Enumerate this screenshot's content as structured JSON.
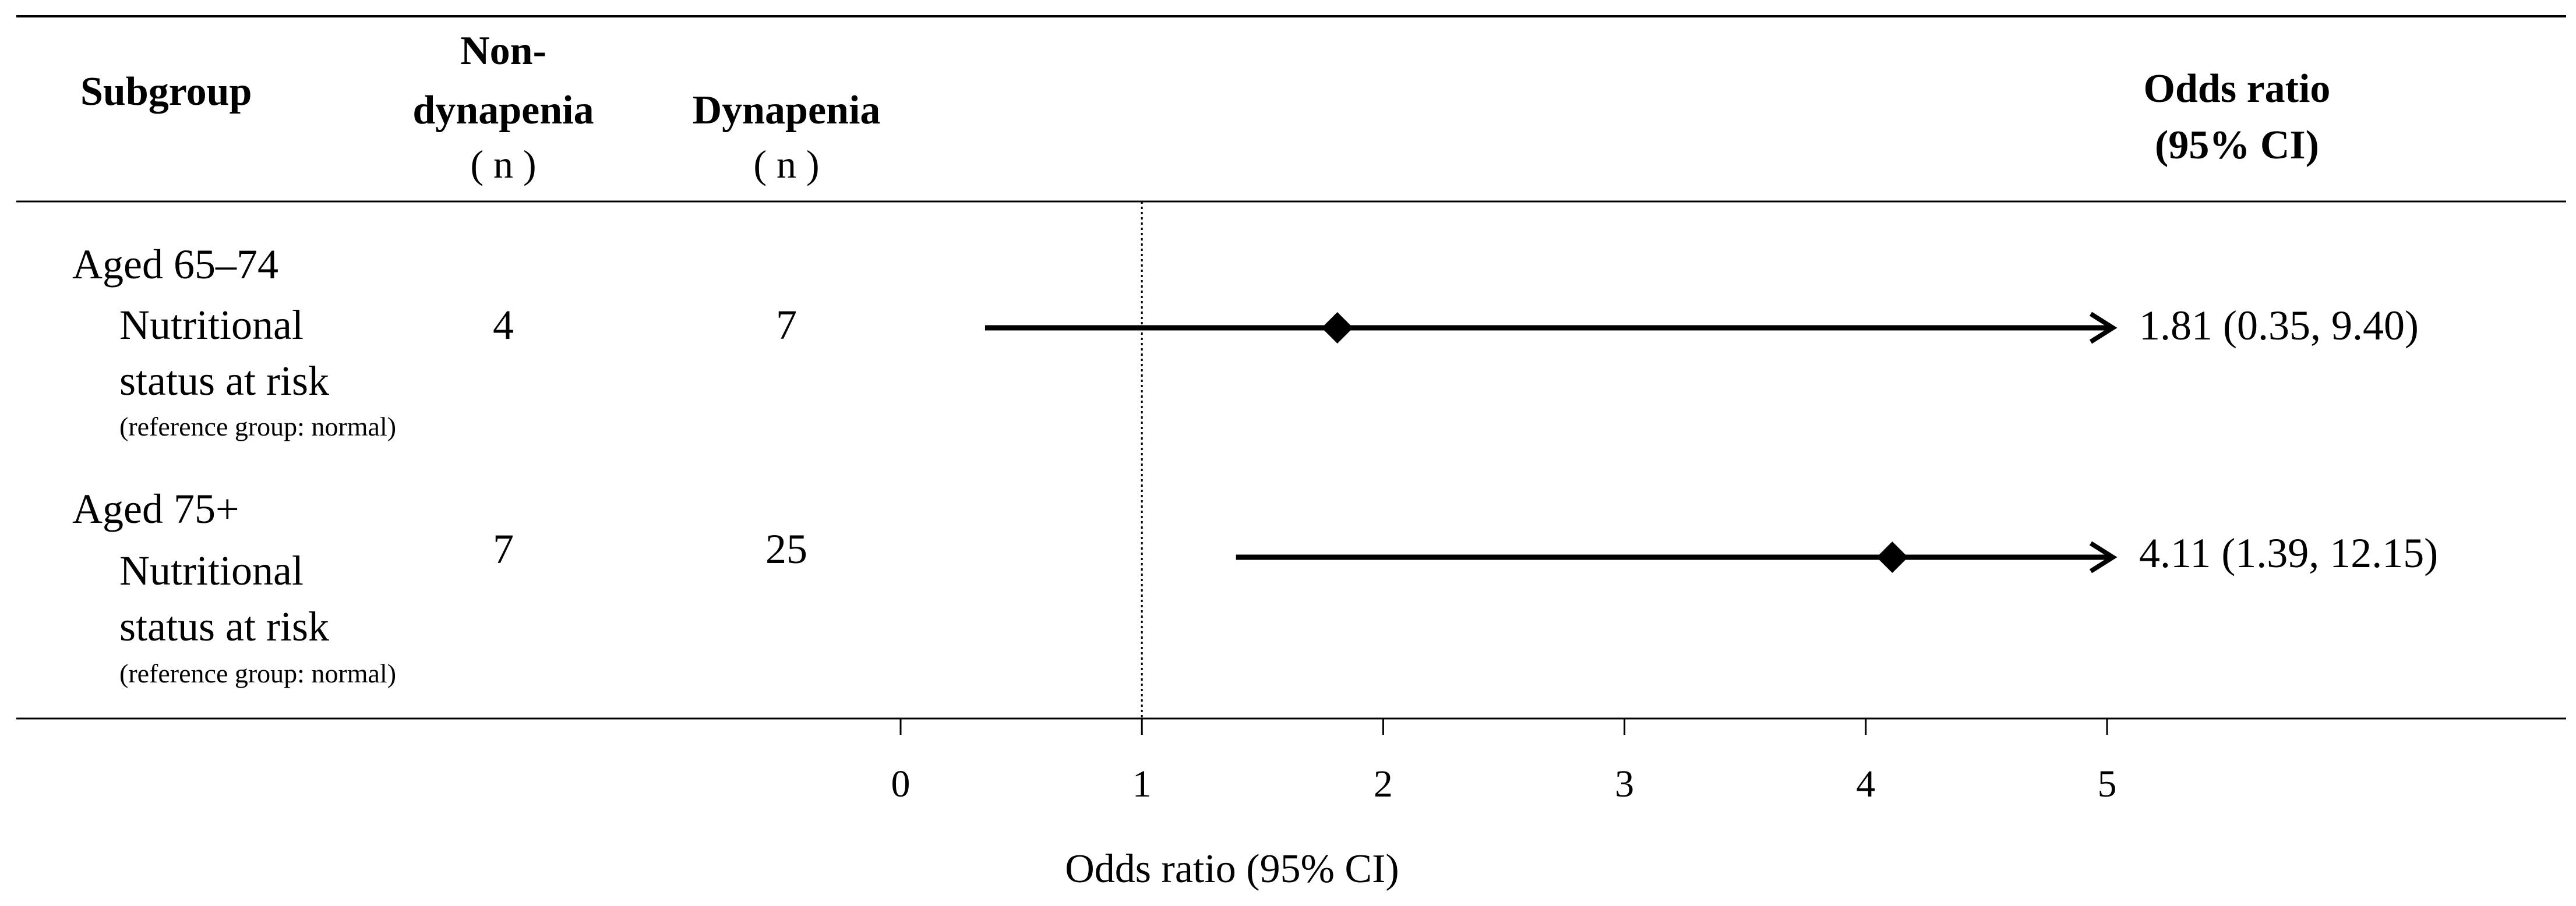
{
  "chart_data": {
    "type": "forest",
    "headers": {
      "subgroup": "Subgroup",
      "non_dynapenia": [
        "Non-",
        "dynapenia",
        "( n )"
      ],
      "dynapenia": [
        "Dynapenia",
        "( n )"
      ],
      "odds_ratio": [
        "Odds ratio",
        "(95% CI)"
      ]
    },
    "rows": [
      {
        "group": "Aged 65–74",
        "label_lines": [
          "Nutritional",
          "status at risk"
        ],
        "reference": "(reference group: normal)",
        "non_dynapenia_n": "4",
        "dynapenia_n": "7",
        "or": 1.81,
        "ci_low": 0.35,
        "ci_high": 9.4,
        "ci_arrow_right": true,
        "or_text": "1.81 (0.35, 9.40)"
      },
      {
        "group": "Aged 75+",
        "label_lines": [
          "Nutritional",
          "status at risk"
        ],
        "reference": "(reference group: normal)",
        "non_dynapenia_n": "7",
        "dynapenia_n": "25",
        "or": 4.11,
        "ci_low": 1.39,
        "ci_high": 12.15,
        "ci_arrow_right": true,
        "or_text": "4.11 (1.39, 12.15)"
      }
    ],
    "reference_line": 1,
    "xlim": [
      0,
      5
    ],
    "ticks": [
      0,
      1,
      2,
      3,
      4,
      5
    ],
    "xlabel": "Odds ratio (95% CI)"
  }
}
